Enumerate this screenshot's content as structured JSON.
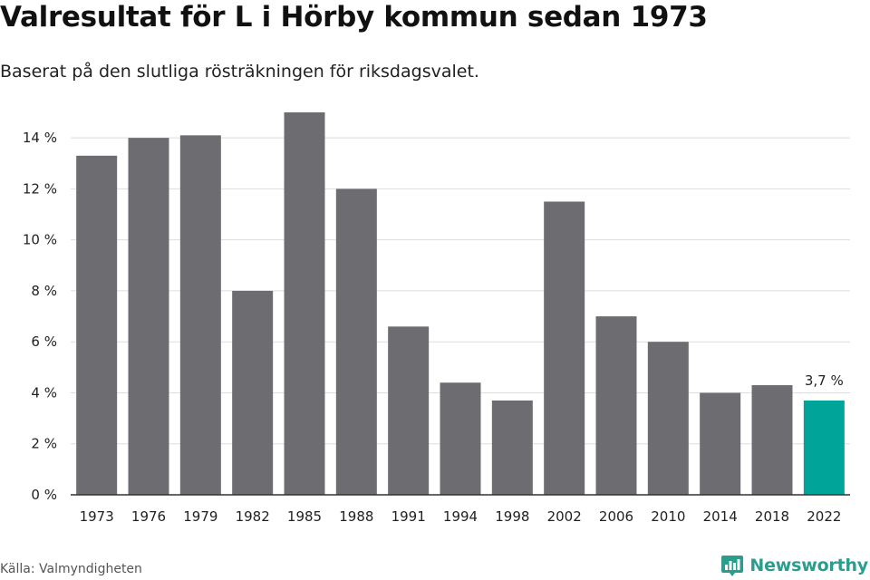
{
  "header": {
    "title": "Valresultat för L i Hörby kommun sedan 1973",
    "subtitle": "Baserat på den slutliga rösträkningen för riksdagsvalet."
  },
  "footer": {
    "source": "Källa: Valmyndigheten",
    "brand": "Newsworthy",
    "brand_icon": "newsworthy-bar-chart-logo"
  },
  "colors": {
    "bar": "#6d6c71",
    "highlight": "#00a499",
    "grid": "#dddddd",
    "axis": "#333333",
    "text": "#222222",
    "brand": "#2a9d8f"
  },
  "chart_data": {
    "type": "bar",
    "title": "Valresultat för L i Hörby kommun sedan 1973",
    "subtitle": "Baserat på den slutliga rösträkningen för riksdagsvalet.",
    "xlabel": "",
    "ylabel": "",
    "categories": [
      "1973",
      "1976",
      "1979",
      "1982",
      "1985",
      "1988",
      "1991",
      "1994",
      "1998",
      "2002",
      "2006",
      "2010",
      "2014",
      "2018",
      "2022"
    ],
    "values": [
      13.3,
      14.0,
      14.1,
      8.0,
      15.0,
      12.0,
      6.6,
      4.4,
      3.7,
      11.5,
      7.0,
      6.0,
      4.0,
      4.3,
      3.7
    ],
    "ylim": [
      0,
      15
    ],
    "yticks": [
      0,
      2,
      4,
      6,
      8,
      10,
      12,
      14
    ],
    "ytick_labels": [
      "0 %",
      "2 %",
      "4 %",
      "6 %",
      "8 %",
      "10 %",
      "12 %",
      "14 %"
    ],
    "highlight_category": "2022",
    "annotations": [
      {
        "category": "2022",
        "text": "3,7 %"
      }
    ],
    "grid": true,
    "legend": "none"
  }
}
